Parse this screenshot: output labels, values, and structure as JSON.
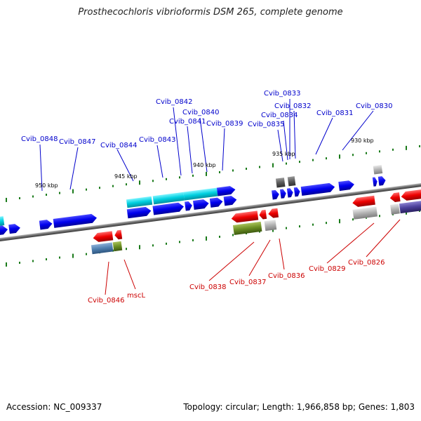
{
  "title": "Prosthecochloris vibrioformis DSM 265, complete genome",
  "footer": {
    "accession": "Accession: NC_009337",
    "topology": "Topology: circular; Length: 1,966,858 bp; Genes: 1,803"
  },
  "colors": {
    "forward_label": "#0000cc",
    "reverse_label": "#cc0000",
    "blue_gene": "#0000ee",
    "cyan_gene": "#00c8d8",
    "red_gene": "#ee0000",
    "green_gene": "#6b8e23",
    "gray_gene": "#a8a8a8",
    "tick": "#1a7a1a"
  },
  "scale_labels": [
    {
      "text": "950 kbp",
      "kbp": 950
    },
    {
      "text": "945 kbp",
      "kbp": 945
    },
    {
      "text": "940 kbp",
      "kbp": 940
    },
    {
      "text": "935 kbp",
      "kbp": 935
    },
    {
      "text": "930 kbp",
      "kbp": 930
    }
  ],
  "forward_labels": [
    "Cvib_0848",
    "Cvib_0847",
    "Cvib_0844",
    "Cvib_0843",
    "Cvib_0842",
    "Cvib_0841",
    "Cvib_0840",
    "Cvib_0839",
    "Cvib_0835",
    "Cvib_0834",
    "Cvib_0833",
    "Cvib_0832",
    "Cvib_0831",
    "Cvib_0830"
  ],
  "reverse_labels": [
    "Cvib_0846",
    "mscL",
    "Cvib_0838",
    "Cvib_0837",
    "Cvib_0836",
    "Cvib_0829",
    "Cvib_0826"
  ]
}
